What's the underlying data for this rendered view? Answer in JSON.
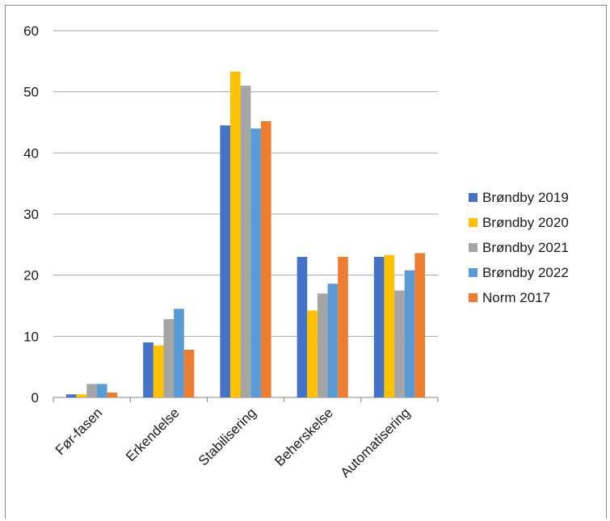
{
  "chart_data": {
    "type": "bar",
    "title": "",
    "xlabel": "",
    "ylabel": "",
    "categories": [
      "Før-fasen",
      "Erkendelse",
      "Stabilisering",
      "Beherskelse",
      "Automatisering"
    ],
    "series": [
      {
        "name": "Brøndby 2019",
        "color": "#4472c4",
        "values": [
          0.5,
          9.0,
          44.5,
          23.0,
          23.0
        ]
      },
      {
        "name": "Brøndby 2020",
        "color": "#ffc000",
        "values": [
          0.5,
          8.5,
          53.3,
          14.2,
          23.3
        ]
      },
      {
        "name": "Brøndby 2021",
        "color": "#a5a5a5",
        "values": [
          2.2,
          12.8,
          51.0,
          17.0,
          17.5
        ]
      },
      {
        "name": "Brøndby 2022",
        "color": "#5b9bd5",
        "values": [
          2.2,
          14.5,
          44.0,
          18.6,
          20.8
        ]
      },
      {
        "name": "Norm 2017",
        "color": "#ed7d31",
        "values": [
          0.8,
          7.8,
          45.2,
          23.0,
          23.6
        ]
      }
    ],
    "ylim": [
      0,
      60
    ],
    "yticks": [
      0,
      10,
      20,
      30,
      40,
      50,
      60
    ],
    "grid": true,
    "legend_position": "right",
    "gridline_color": "#a6a6a6"
  }
}
